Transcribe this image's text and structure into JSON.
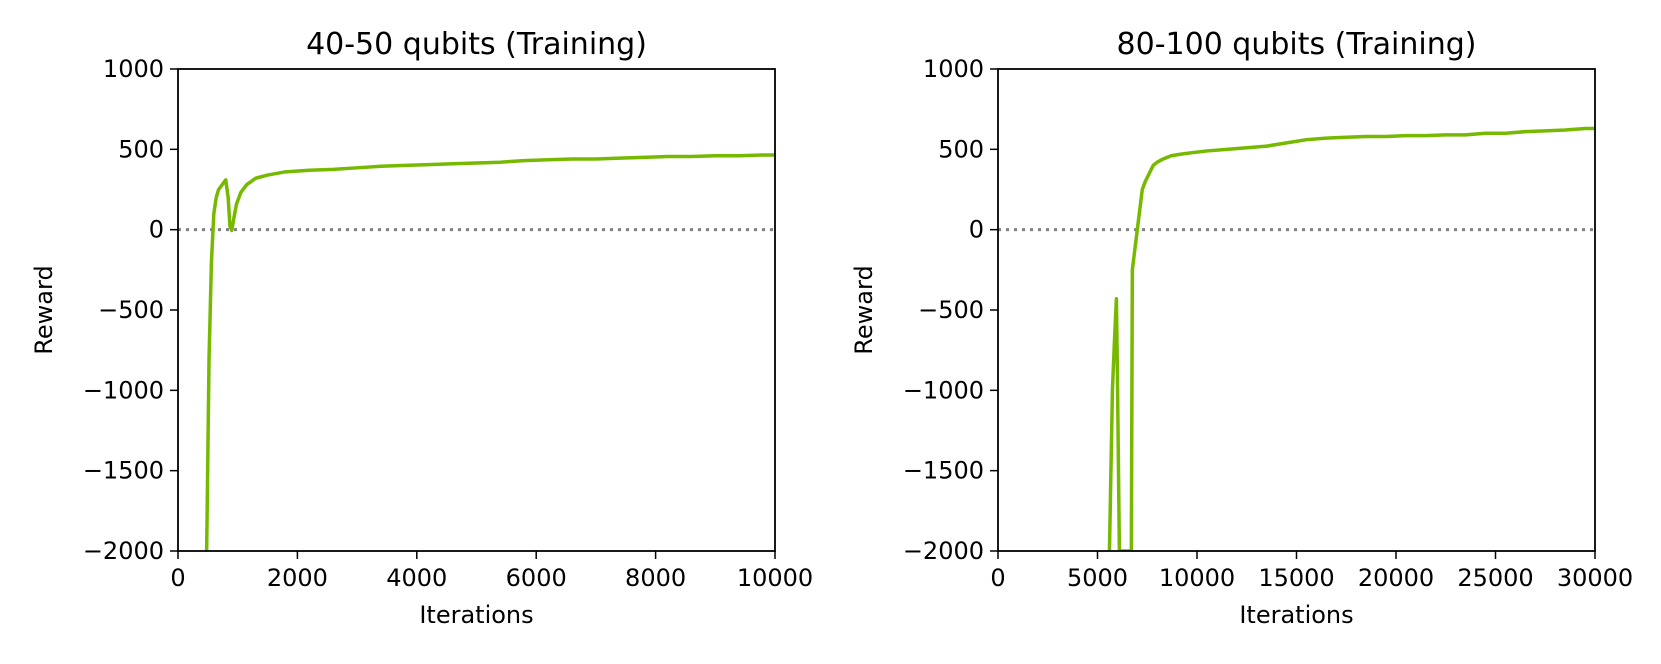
{
  "chart_data": [
    {
      "type": "line",
      "title": "40-50 qubits (Training)",
      "xlabel": "Iterations",
      "ylabel": "Reward",
      "xlim": [
        0,
        10000
      ],
      "ylim": [
        -2000,
        1000
      ],
      "xticks": [
        "0",
        "2000",
        "4000",
        "6000",
        "8000",
        "10000"
      ],
      "yticks": [
        "1000",
        "500",
        "0",
        "−500",
        "−1000",
        "−1500",
        "−2000"
      ],
      "reference_line": {
        "y": 0,
        "style": "dotted",
        "color": "#808080"
      },
      "series": [
        {
          "color": "#76b900",
          "x": [
            480,
            520,
            560,
            600,
            640,
            680,
            720,
            760,
            800,
            840,
            870,
            900,
            940,
            980,
            1050,
            1150,
            1300,
            1500,
            1800,
            2200,
            2600,
            3000,
            3400,
            3800,
            4200,
            4600,
            5000,
            5400,
            5800,
            6200,
            6600,
            7000,
            7400,
            7800,
            8200,
            8600,
            9000,
            9400,
            9800,
            10000
          ],
          "y": [
            -2000,
            -800,
            -200,
            100,
            200,
            250,
            270,
            290,
            310,
            200,
            20,
            -5,
            80,
            160,
            230,
            280,
            320,
            340,
            360,
            370,
            375,
            385,
            395,
            400,
            405,
            410,
            415,
            420,
            430,
            435,
            440,
            440,
            445,
            450,
            455,
            455,
            460,
            460,
            465,
            465
          ]
        }
      ]
    },
    {
      "type": "line",
      "title": "80-100 qubits (Training)",
      "xlabel": "Iterations",
      "ylabel": "Reward",
      "xlim": [
        0,
        30000
      ],
      "ylim": [
        -2000,
        1000
      ],
      "xticks": [
        "0",
        "5000",
        "10000",
        "15000",
        "20000",
        "25000",
        "30000"
      ],
      "yticks": [
        "1000",
        "500",
        "0",
        "−500",
        "−1000",
        "−1500",
        "−2000"
      ],
      "reference_line": {
        "y": 0,
        "style": "dotted",
        "color": "#808080"
      },
      "series": [
        {
          "color": "#76b900",
          "x": [
            5600,
            5750,
            5850,
            5950,
            6000,
            6100,
            6700,
            6750,
            6850,
            6950,
            7050,
            7150,
            7250,
            7400,
            7600,
            7800,
            8000,
            8300,
            8700,
            9200,
            9800,
            10500,
            11500,
            12500,
            13500,
            14500,
            15500,
            16500,
            17500,
            18500,
            19500,
            20500,
            21500,
            22500,
            23500,
            24500,
            25500,
            26500,
            27500,
            28500,
            29500,
            30000
          ],
          "y": [
            -2000,
            -1000,
            -700,
            -430,
            -900,
            -2000,
            -2000,
            -250,
            -150,
            -50,
            50,
            150,
            250,
            300,
            350,
            400,
            420,
            440,
            460,
            470,
            480,
            490,
            500,
            510,
            520,
            540,
            560,
            570,
            575,
            580,
            580,
            585,
            585,
            590,
            590,
            600,
            600,
            610,
            615,
            620,
            630,
            630
          ]
        }
      ]
    }
  ]
}
